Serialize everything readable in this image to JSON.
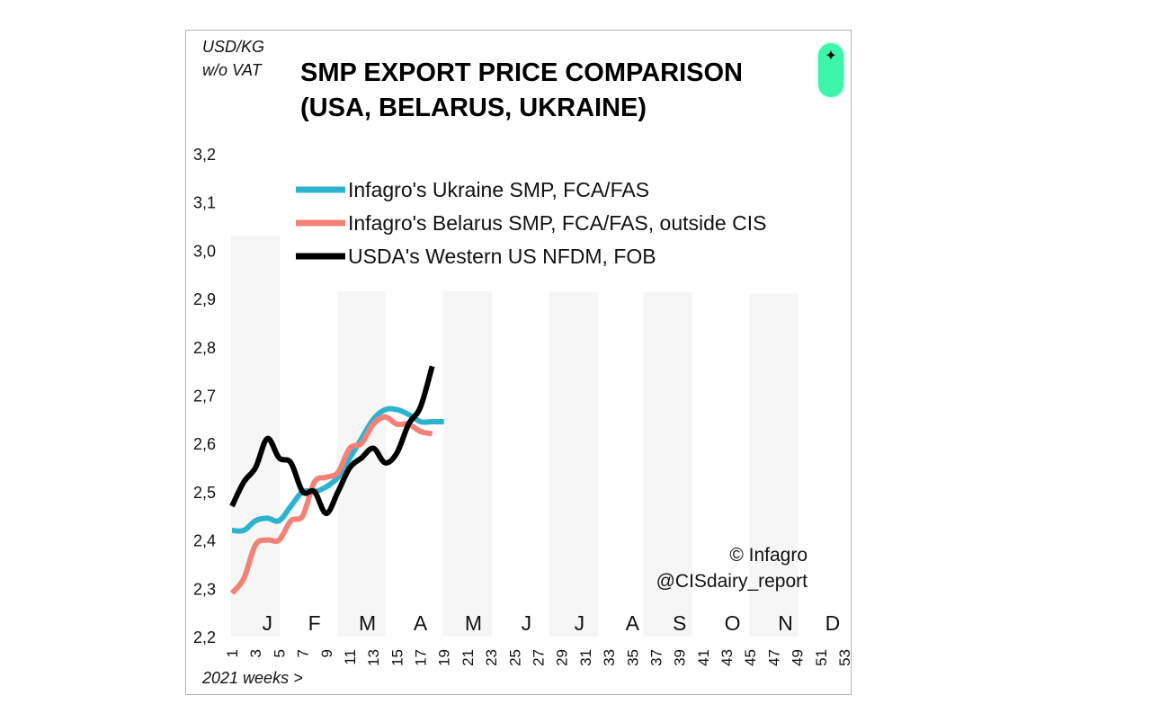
{
  "chart_data": {
    "type": "line",
    "title_line1": "SMP EXPORT PRICE COMPARISON",
    "title_line2": "(USA, BELARUS, UKRAINE)",
    "unit_line1": "USD/KG",
    "unit_line2": "w/o VAT",
    "xlabel": "2021 weeks >",
    "credit_line1": "© Infagro",
    "credit_line2": "@CISdairy_report",
    "ylim": [
      2.2,
      3.2
    ],
    "xlim": [
      1,
      53
    ],
    "yticks": [
      "2,2",
      "2,3",
      "2,4",
      "2,5",
      "2,6",
      "2,7",
      "2,8",
      "2,9",
      "3,0",
      "3,1",
      "3,2"
    ],
    "yticks_values": [
      2.2,
      2.3,
      2.4,
      2.5,
      2.6,
      2.7,
      2.8,
      2.9,
      3.0,
      3.1,
      3.2
    ],
    "xticks": [
      "1",
      "3",
      "5",
      "7",
      "9",
      "11",
      "13",
      "15",
      "17",
      "19",
      "21",
      "23",
      "25",
      "27",
      "29",
      "31",
      "33",
      "35",
      "37",
      "39",
      "41",
      "43",
      "45",
      "47",
      "49",
      "51",
      "53"
    ],
    "months": [
      {
        "label": "J",
        "week": 4
      },
      {
        "label": "F",
        "week": 8
      },
      {
        "label": "M",
        "week": 12.5
      },
      {
        "label": "A",
        "week": 17
      },
      {
        "label": "M",
        "week": 21.5
      },
      {
        "label": "J",
        "week": 26
      },
      {
        "label": "J",
        "week": 30.5
      },
      {
        "label": "A",
        "week": 35
      },
      {
        "label": "S",
        "week": 39
      },
      {
        "label": "O",
        "week": 43.5
      },
      {
        "label": "N",
        "week": 48
      },
      {
        "label": "D",
        "week": 52
      }
    ],
    "shaded_months": [
      {
        "from": 1,
        "to": 5,
        "height": 3.03
      },
      {
        "from": 10,
        "to": 14,
        "height": 2.915
      },
      {
        "from": 19,
        "to": 23,
        "height": 2.915
      },
      {
        "from": 28,
        "to": 32,
        "height": 2.913
      },
      {
        "from": 36,
        "to": 40,
        "height": 2.913
      },
      {
        "from": 45,
        "to": 49,
        "height": 2.91
      }
    ],
    "series": [
      {
        "name": "Infagro's Ukraine SMP, FCA/FAS",
        "color": "#2eb3cf",
        "points": [
          [
            1,
            2.42
          ],
          [
            2,
            2.42
          ],
          [
            3,
            2.44
          ],
          [
            4,
            2.445
          ],
          [
            5,
            2.44
          ],
          [
            6,
            2.47
          ],
          [
            7,
            2.5
          ],
          [
            8,
            2.5
          ],
          [
            9,
            2.51
          ],
          [
            10,
            2.53
          ],
          [
            11,
            2.57
          ],
          [
            12,
            2.61
          ],
          [
            13,
            2.65
          ],
          [
            14,
            2.67
          ],
          [
            15,
            2.67
          ],
          [
            16,
            2.66
          ],
          [
            17,
            2.645
          ],
          [
            18,
            2.645
          ],
          [
            19,
            2.645
          ]
        ]
      },
      {
        "name": "Infagro's Belarus SMP, FCA/FAS, outside CIS",
        "color": "#f28278",
        "points": [
          [
            1,
            2.29
          ],
          [
            2,
            2.32
          ],
          [
            3,
            2.39
          ],
          [
            4,
            2.4
          ],
          [
            5,
            2.4
          ],
          [
            6,
            2.44
          ],
          [
            7,
            2.45
          ],
          [
            8,
            2.52
          ],
          [
            9,
            2.53
          ],
          [
            10,
            2.54
          ],
          [
            11,
            2.59
          ],
          [
            12,
            2.6
          ],
          [
            13,
            2.64
          ],
          [
            14,
            2.655
          ],
          [
            15,
            2.64
          ],
          [
            16,
            2.64
          ],
          [
            17,
            2.625
          ],
          [
            18,
            2.62
          ]
        ]
      },
      {
        "name": "USDA's Western US NFDM, FOB",
        "color": "#000000",
        "points": [
          [
            1,
            2.47
          ],
          [
            2,
            2.52
          ],
          [
            3,
            2.55
          ],
          [
            4,
            2.61
          ],
          [
            5,
            2.57
          ],
          [
            6,
            2.56
          ],
          [
            7,
            2.5
          ],
          [
            8,
            2.5
          ],
          [
            9,
            2.455
          ],
          [
            10,
            2.5
          ],
          [
            11,
            2.55
          ],
          [
            12,
            2.57
          ],
          [
            13,
            2.59
          ],
          [
            14,
            2.56
          ],
          [
            15,
            2.58
          ],
          [
            16,
            2.64
          ],
          [
            17,
            2.675
          ],
          [
            18,
            2.76
          ]
        ]
      }
    ]
  }
}
